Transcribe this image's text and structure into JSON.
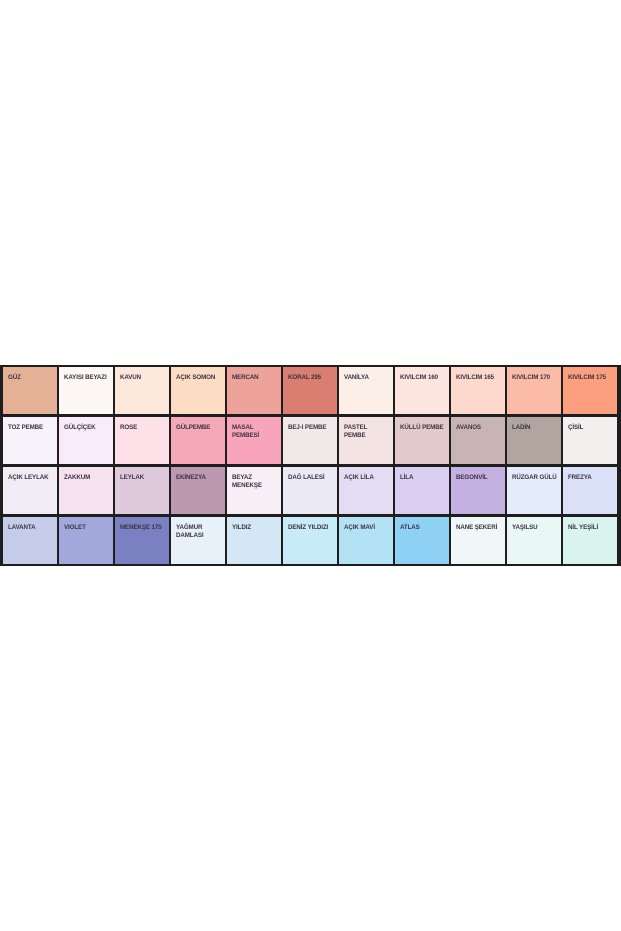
{
  "swatches": [
    [
      {
        "name": "GÜZ",
        "color": "#e4b096"
      },
      {
        "name": "KAYISI BEYAZI",
        "color": "#fdf8f4"
      },
      {
        "name": "KAVUN",
        "color": "#fde9dc"
      },
      {
        "name": "AÇIK SOMON",
        "color": "#fddcc4"
      },
      {
        "name": "MERCAN",
        "color": "#eda399"
      },
      {
        "name": "KORAL 295",
        "color": "#da7e72"
      },
      {
        "name": "VANİLYA",
        "color": "#fcefe8"
      },
      {
        "name": "KIVILCIM 160",
        "color": "#fde6e0"
      },
      {
        "name": "KIVILCIM 165",
        "color": "#fdd8cd"
      },
      {
        "name": "KIVILCIM 170",
        "color": "#fcbba7"
      },
      {
        "name": "KIVILCIM 175",
        "color": "#fb9f7f"
      }
    ],
    [
      {
        "name": "TOZ PEMBE",
        "color": "#f8f2fa"
      },
      {
        "name": "GÜLÇİÇEK",
        "color": "#f9ebf9"
      },
      {
        "name": "ROSE",
        "color": "#fde0e8"
      },
      {
        "name": "GÜLPEMBE",
        "color": "#f5a8b6"
      },
      {
        "name": "MASAL PEMBESİ",
        "color": "#f8a4bc"
      },
      {
        "name": "BEJ-I PEMBE",
        "color": "#f1e8ea"
      },
      {
        "name": "PASTEL PEMBE",
        "color": "#f4e3e3"
      },
      {
        "name": "KÜLLÜ PEMBE",
        "color": "#e2c9cc"
      },
      {
        "name": "AVANOS",
        "color": "#c9b4b4"
      },
      {
        "name": "LADİN",
        "color": "#b2a5a0"
      },
      {
        "name": "ÇİSİL",
        "color": "#f3efee"
      }
    ],
    [
      {
        "name": "AÇIK LEYLAK",
        "color": "#f1ebf5"
      },
      {
        "name": "ZAKKUM",
        "color": "#f5e2ee"
      },
      {
        "name": "LEYLAK",
        "color": "#dfcadd"
      },
      {
        "name": "EKİNEZYA",
        "color": "#bc99b1"
      },
      {
        "name": "BEYAZ MENEKŞE",
        "color": "#f8eef6"
      },
      {
        "name": "DAĞ LALESİ",
        "color": "#ece9f7"
      },
      {
        "name": "AÇIK LİLA",
        "color": "#e3dcf2"
      },
      {
        "name": "LİLA",
        "color": "#dacff0"
      },
      {
        "name": "BEGONVİL",
        "color": "#c5b0e2"
      },
      {
        "name": "RÜZGAR GÜLÜ",
        "color": "#e4ecfa"
      },
      {
        "name": "FREZYA",
        "color": "#d9e0f7"
      }
    ],
    [
      {
        "name": "LAVANTA",
        "color": "#c6cdeb"
      },
      {
        "name": "VIOLET",
        "color": "#a3a8dc"
      },
      {
        "name": "MENEKŞE 175",
        "color": "#7a80c2"
      },
      {
        "name": "YAĞMUR DAMLASI",
        "color": "#e6f1fa"
      },
      {
        "name": "YILDIZ",
        "color": "#d4e7f5"
      },
      {
        "name": "DENİZ YILDIZI",
        "color": "#c8ebf8"
      },
      {
        "name": "AÇIK MAVİ",
        "color": "#b3e2f5"
      },
      {
        "name": "ATLAS",
        "color": "#8fd0f5"
      },
      {
        "name": "NANE ŞEKERİ",
        "color": "#f0f8f7"
      },
      {
        "name": "YAŞILSU",
        "color": "#e9f8f4"
      },
      {
        "name": "NİL YEŞİLİ",
        "color": "#d9f4ee"
      }
    ]
  ]
}
